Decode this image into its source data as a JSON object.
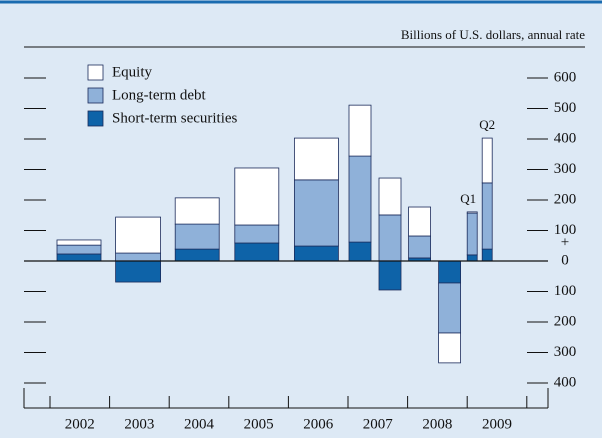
{
  "chart_data": {
    "type": "stacked_bar",
    "units_label": "Billions of U.S. dollars, annual rate",
    "categories": [
      "2002",
      "2003",
      "2004",
      "2005",
      "2006",
      null,
      null,
      null,
      null,
      "Q1",
      "Q2"
    ],
    "year_labels": [
      "2002",
      "2003",
      "2004",
      "2005",
      "2006",
      "2007",
      "2008",
      "2009"
    ],
    "series": [
      {
        "name": "Short-term securities",
        "color": "#0e63a8",
        "values": [
          23,
          -69,
          39,
          59,
          49,
          62,
          -95,
          10,
          -72,
          20,
          39
        ]
      },
      {
        "name": "Long-term debt",
        "color": "#8fb1d9",
        "values": [
          29,
          26,
          82,
          59,
          217,
          282,
          151,
          72,
          -164,
          137,
          217
        ]
      },
      {
        "name": "Equity",
        "color": "#ffffff",
        "values": [
          17,
          118,
          86,
          187,
          137,
          167,
          121,
          95,
          -98,
          4,
          147
        ]
      }
    ],
    "ylim": [
      -400,
      600
    ],
    "yticks": [
      600,
      500,
      400,
      300,
      200,
      100,
      0,
      {
        "value": -100,
        "label": "100"
      },
      {
        "value": -200,
        "label": "200"
      },
      {
        "value": -300,
        "label": "300"
      },
      {
        "value": -400,
        "label": "400"
      }
    ],
    "positive_sign": "+",
    "background": "#dde9f5"
  }
}
